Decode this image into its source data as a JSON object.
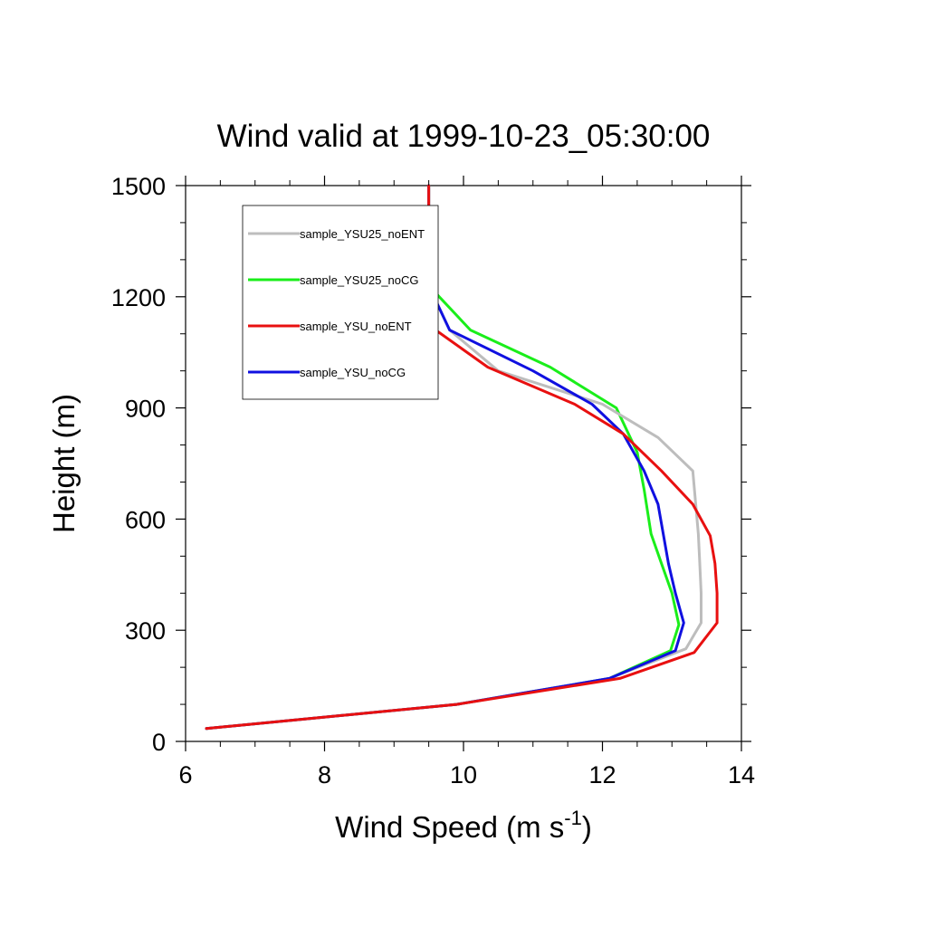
{
  "chart_data": {
    "type": "line",
    "title": "Wind valid at 1999-10-23_05:30:00",
    "xlabel": "Wind Speed (m s",
    "xlabel_superscript": "-1",
    "xlabel_close": ")",
    "ylabel": "Height (m)",
    "xlim": [
      6,
      14
    ],
    "ylim": [
      0,
      1500
    ],
    "xticks": [
      6,
      8,
      10,
      12,
      14
    ],
    "xtick_labels": [
      "6",
      "8",
      "10",
      "12",
      "14"
    ],
    "yticks": [
      0,
      300,
      600,
      900,
      1200,
      1500
    ],
    "ytick_labels": [
      "0",
      "300",
      "600",
      "900",
      "1200",
      "1500"
    ],
    "grid": false,
    "legend_position": "top-left",
    "series": [
      {
        "name": "sample_YSU25_noENT",
        "color": "#bdbdbd",
        "x": [
          6.3,
          9.9,
          12.1,
          13.2,
          13.42,
          13.42,
          13.4,
          13.38,
          13.3,
          12.8,
          12.0,
          10.5,
          9.8,
          9.6,
          9.5,
          9.5,
          9.5,
          9.5
        ],
        "y": [
          35,
          100,
          170,
          250,
          320,
          400,
          480,
          560,
          730,
          820,
          910,
          1000,
          1110,
          1190,
          1250,
          1300,
          1400,
          1500
        ]
      },
      {
        "name": "sample_YSU25_noCG",
        "color": "#1aee1a",
        "x": [
          6.3,
          9.9,
          12.1,
          12.98,
          13.1,
          13.0,
          12.85,
          12.7,
          12.6,
          12.5,
          12.2,
          11.25,
          10.1,
          9.6,
          9.5,
          9.5
        ],
        "y": [
          35,
          100,
          170,
          245,
          315,
          400,
          480,
          560,
          680,
          780,
          900,
          1010,
          1110,
          1210,
          1300,
          1500
        ]
      },
      {
        "name": "sample_YSU_noENT",
        "color": "#e81010",
        "x": [
          6.3,
          9.9,
          12.25,
          13.32,
          13.65,
          13.65,
          13.62,
          13.55,
          13.3,
          12.85,
          12.3,
          11.6,
          10.35,
          9.6,
          9.5,
          9.5
        ],
        "y": [
          35,
          100,
          170,
          240,
          320,
          400,
          480,
          555,
          640,
          730,
          830,
          910,
          1010,
          1110,
          1220,
          1500
        ]
      },
      {
        "name": "sample_YSU_noCG",
        "color": "#1010e0",
        "x": [
          6.3,
          9.9,
          12.1,
          13.05,
          13.17,
          13.05,
          12.95,
          12.8,
          12.6,
          12.3,
          11.85,
          11.0,
          9.8,
          9.55,
          9.5,
          9.5
        ],
        "y": [
          35,
          100,
          170,
          245,
          320,
          400,
          480,
          640,
          730,
          830,
          910,
          1000,
          1110,
          1210,
          1300,
          1500
        ]
      }
    ]
  }
}
